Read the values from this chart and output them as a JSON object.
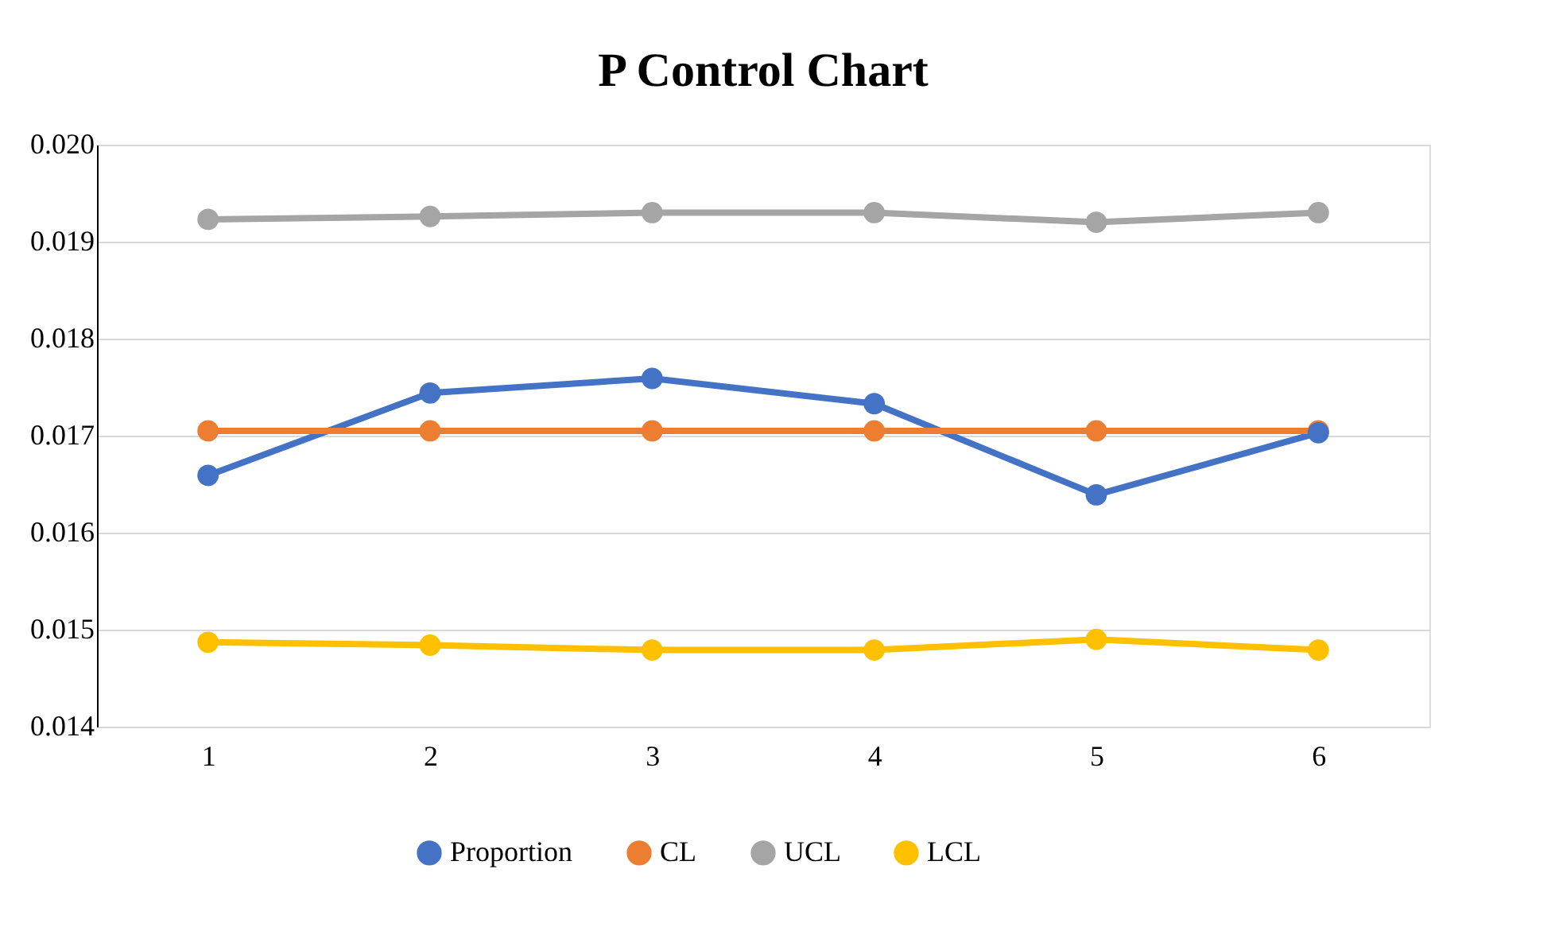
{
  "chart_data": {
    "type": "line",
    "title": "P Control Chart",
    "categories": [
      "1",
      "2",
      "3",
      "4",
      "5",
      "6"
    ],
    "series": [
      {
        "name": "Proportion",
        "color": "#4472c4",
        "values": [
          0.01659,
          0.01744,
          0.01759,
          0.01733,
          0.01639,
          0.01703
        ]
      },
      {
        "name": "CL",
        "color": "#ed7d31",
        "values": [
          0.01705,
          0.01705,
          0.01705,
          0.01705,
          0.01705,
          0.01705
        ]
      },
      {
        "name": "UCL",
        "color": "#a5a5a5",
        "values": [
          0.01923,
          0.01926,
          0.0193,
          0.0193,
          0.0192,
          0.0193
        ]
      },
      {
        "name": "LCL",
        "color": "#ffc000",
        "values": [
          0.01487,
          0.01484,
          0.01479,
          0.01479,
          0.0149,
          0.01479
        ]
      }
    ],
    "ylim": [
      0.014,
      0.02
    ],
    "yticks": [
      {
        "value": 0.014,
        "label": "0.014"
      },
      {
        "value": 0.015,
        "label": "0.015"
      },
      {
        "value": 0.016,
        "label": "0.016"
      },
      {
        "value": 0.017,
        "label": "0.017"
      },
      {
        "value": 0.018,
        "label": "0.018"
      },
      {
        "value": 0.019,
        "label": "0.019"
      },
      {
        "value": 0.02,
        "label": "0.020"
      }
    ],
    "grid": "y",
    "legend": "bottom",
    "marker": "circle",
    "line_style": "solid"
  }
}
